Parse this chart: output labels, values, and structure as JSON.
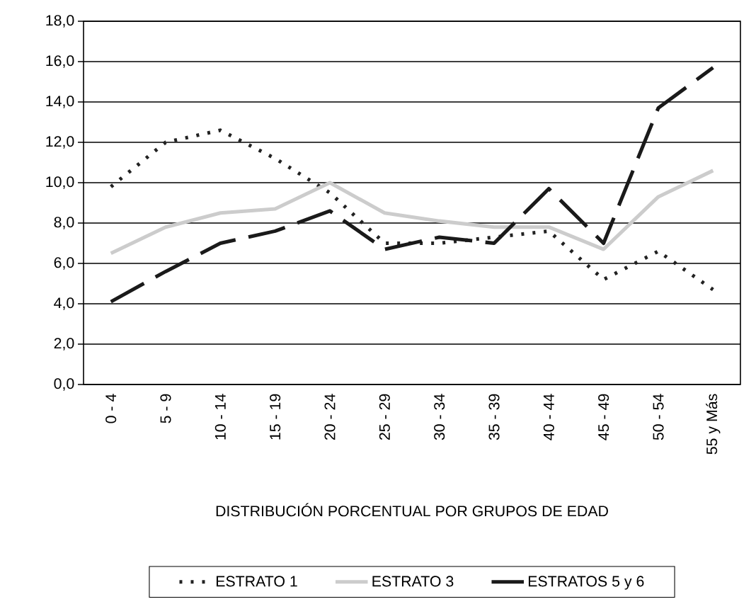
{
  "chart_data": {
    "type": "line",
    "xlabel": "DISTRIBUCIÓN PORCENTUAL POR GRUPOS DE EDAD",
    "categories": [
      "0 - 4",
      "5 - 9",
      "10 - 14",
      "15 - 19",
      "20 - 24",
      "25 - 29",
      "30 - 34",
      "35 - 39",
      "40 - 44",
      "45 - 49",
      "50 - 54",
      "55 y Más"
    ],
    "series": [
      {
        "name": "ESTRATO 1",
        "color": "#222222",
        "line_style": "dotted",
        "values": [
          9.8,
          12.0,
          12.6,
          11.2,
          9.5,
          7.0,
          7.0,
          7.3,
          7.6,
          5.2,
          6.6,
          4.7
        ]
      },
      {
        "name": "ESTRATO 3",
        "color": "#cccccc",
        "line_style": "solid",
        "values": [
          6.5,
          7.8,
          8.5,
          8.7,
          10.0,
          8.5,
          8.1,
          7.8,
          7.8,
          6.7,
          9.3,
          10.6
        ]
      },
      {
        "name": "ESTRATOS 5 y 6",
        "color": "#1a1a1a",
        "line_style": "dashed",
        "values": [
          4.1,
          5.6,
          7.0,
          7.6,
          8.6,
          6.7,
          7.3,
          7.0,
          9.7,
          7.0,
          13.7,
          15.7
        ]
      }
    ],
    "ylim": [
      0,
      18
    ],
    "yticks": [
      {
        "value": 0,
        "label": "0,0"
      },
      {
        "value": 2,
        "label": "2,0"
      },
      {
        "value": 4,
        "label": "4,0"
      },
      {
        "value": 6,
        "label": "6,0"
      },
      {
        "value": 8,
        "label": "8,0"
      },
      {
        "value": 10,
        "label": "10,0"
      },
      {
        "value": 12,
        "label": "12,0"
      },
      {
        "value": 14,
        "label": "14,0"
      },
      {
        "value": 16,
        "label": "16,0"
      },
      {
        "value": 18,
        "label": "18,0"
      }
    ],
    "grid": "y",
    "legend": "bottom"
  }
}
